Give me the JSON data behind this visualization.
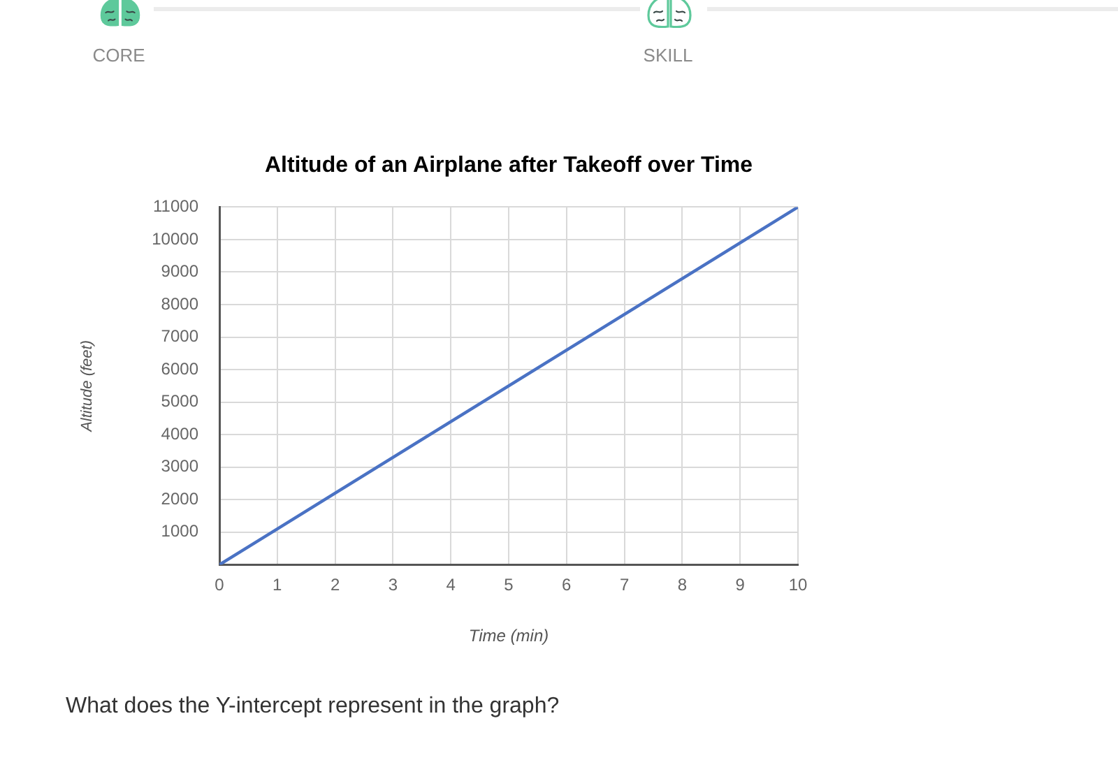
{
  "chart_data": {
    "type": "line",
    "title": "Altitude of an Airplane after Takeoff over Time",
    "xlabel": "Time (min)",
    "ylabel": "Altitude (feet)",
    "x": [
      0,
      10
    ],
    "series": [
      {
        "color": "#4a72c4",
        "values": [
          0,
          11000
        ]
      }
    ],
    "xlim": [
      0,
      10
    ],
    "xticks": [
      0,
      1,
      2,
      3,
      4,
      5,
      6,
      7,
      8,
      9,
      10
    ],
    "ylim": [
      0,
      11000
    ],
    "yticks": [
      {
        "value": 0,
        "label": null
      },
      1000,
      2000,
      3000,
      4000,
      5000,
      6000,
      7000,
      8000,
      9000,
      10000,
      11000
    ],
    "grid": true,
    "marker": "none",
    "line_style": "solid",
    "annotations": [
      "CORE",
      "SKILL",
      "What does the Y-intercept represent in the graph?"
    ]
  }
}
